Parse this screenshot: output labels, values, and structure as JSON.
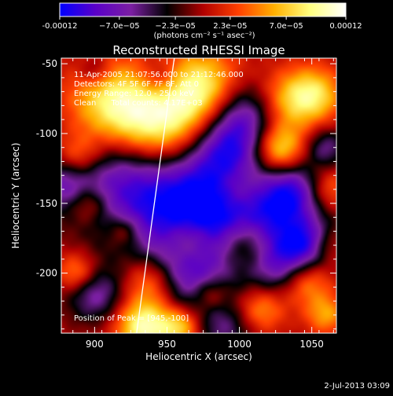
{
  "colorbar": {
    "tick_labels": [
      "-0.00012",
      "−7.0e−05",
      "−2.3e−05",
      "2.3e−05",
      "7.0e−05",
      "0.00012"
    ],
    "tick_values": [
      -0.00012,
      -7e-05,
      -2.3e-05,
      2.3e-05,
      7e-05,
      0.00012
    ],
    "range": [
      -0.00012,
      0.00012
    ],
    "units_label": "(photons cm⁻² s⁻¹ asec⁻²)",
    "colors": [
      "#0000ff",
      "#5a00c8",
      "#7b1fa2",
      "#000000",
      "#b00000",
      "#ff4000",
      "#ffb000",
      "#ffff80",
      "#ffffff"
    ]
  },
  "chart_data": {
    "type": "heatmap",
    "title": "Reconstructed RHESSI Image",
    "xlabel": "Heliocentric X (arcsec)",
    "ylabel": "Heliocentric Y (arcsec)",
    "xlim": [
      877,
      1067
    ],
    "ylim": [
      -243,
      -46
    ],
    "x_ticks": [
      900,
      950,
      1000,
      1050
    ],
    "y_ticks": [
      -50,
      -100,
      -150,
      -200
    ],
    "annotations": [
      "11-Apr-2005 21:07:56.000 to 21:12:46.000",
      "Detectors: 4F 5F 6F 7F 8F, Att 0",
      "Energy Range: 12.0 - 25.0 keV",
      "Clean      Total counts: 4.17E+03"
    ],
    "peak_label": "Position of Peak = [945,-100]",
    "peak": [
      945,
      -100
    ],
    "limb_line": [
      [
        929,
        -243
      ],
      [
        955,
        -46
      ]
    ],
    "sources": [
      {
        "x": 945,
        "y": -100,
        "r": 24,
        "a": 1.0
      },
      {
        "x": 912,
        "y": -80,
        "r": 22,
        "a": 0.75
      },
      {
        "x": 975,
        "y": -68,
        "r": 20,
        "a": 0.75
      },
      {
        "x": 1030,
        "y": -78,
        "r": 16,
        "a": 0.55
      },
      {
        "x": 1052,
        "y": -72,
        "r": 14,
        "a": 0.6
      },
      {
        "x": 1027,
        "y": -112,
        "r": 13,
        "a": 0.85
      },
      {
        "x": 1000,
        "y": -140,
        "r": 14,
        "a": 0.45
      },
      {
        "x": 1060,
        "y": -140,
        "r": 12,
        "a": 0.5
      },
      {
        "x": 888,
        "y": -118,
        "r": 12,
        "a": 0.55
      },
      {
        "x": 896,
        "y": -150,
        "r": 10,
        "a": 0.45
      },
      {
        "x": 888,
        "y": -200,
        "r": 10,
        "a": 0.5
      },
      {
        "x": 965,
        "y": -178,
        "r": 12,
        "a": 0.5
      },
      {
        "x": 940,
        "y": -205,
        "r": 14,
        "a": 0.7
      },
      {
        "x": 1005,
        "y": -180,
        "r": 14,
        "a": 0.65
      },
      {
        "x": 1045,
        "y": -205,
        "r": 13,
        "a": 0.65
      },
      {
        "x": 1015,
        "y": -225,
        "r": 12,
        "a": 0.5
      },
      {
        "x": 935,
        "y": -238,
        "r": 14,
        "a": 0.9
      },
      {
        "x": 960,
        "y": -238,
        "r": 10,
        "a": 0.6
      },
      {
        "x": 1060,
        "y": -230,
        "r": 10,
        "a": 0.45
      },
      {
        "x": 920,
        "y": -170,
        "r": 8,
        "a": 0.35
      },
      {
        "x": 980,
        "y": -215,
        "r": 9,
        "a": 0.4
      },
      {
        "x": 1060,
        "y": -180,
        "r": 9,
        "a": 0.4
      },
      {
        "x": 925,
        "y": -130,
        "r": 30,
        "a": -0.85
      },
      {
        "x": 975,
        "y": -150,
        "r": 30,
        "a": -0.9
      },
      {
        "x": 1020,
        "y": -160,
        "r": 26,
        "a": -0.75
      },
      {
        "x": 880,
        "y": -135,
        "r": 14,
        "a": -0.5
      },
      {
        "x": 990,
        "y": -110,
        "r": 18,
        "a": -0.55
      },
      {
        "x": 1005,
        "y": -85,
        "r": 18,
        "a": -0.7
      },
      {
        "x": 960,
        "y": -200,
        "r": 22,
        "a": -0.7
      },
      {
        "x": 1030,
        "y": -195,
        "r": 16,
        "a": -0.6
      },
      {
        "x": 900,
        "y": -215,
        "r": 14,
        "a": -0.55
      },
      {
        "x": 1040,
        "y": -140,
        "r": 14,
        "a": -0.5
      },
      {
        "x": 1060,
        "y": -110,
        "r": 10,
        "a": -0.45
      },
      {
        "x": 1050,
        "y": -180,
        "r": 12,
        "a": -0.55
      },
      {
        "x": 990,
        "y": -240,
        "r": 14,
        "a": -0.4
      },
      {
        "x": 945,
        "y": -60,
        "r": 10,
        "a": -0.35
      },
      {
        "x": 900,
        "y": -55,
        "r": 8,
        "a": -0.3
      }
    ]
  },
  "footer": {
    "timestamp": "2-Jul-2013 03:09"
  }
}
